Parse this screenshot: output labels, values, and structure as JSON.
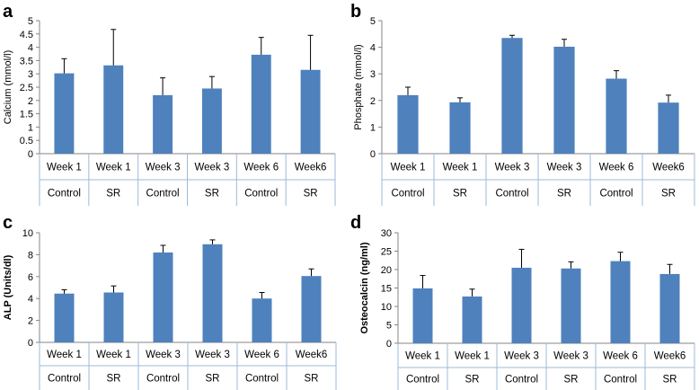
{
  "bar_color": "#4f81bd",
  "axis_color": "#868686",
  "group_line_color": "#9bbbd9",
  "chart_data": [
    {
      "type": "bar",
      "panel": "a",
      "ylabel": "Calcium (mmol/l)",
      "ylim": [
        0,
        5
      ],
      "ystep": 0.5,
      "yticks": [
        "0",
        "0.5",
        "1",
        "1.5",
        "2",
        "2.5",
        "3",
        "3.5",
        "4",
        "4.5",
        "5"
      ],
      "categories": [
        "Week 1",
        "Week 1",
        "Week 3",
        "Week 3",
        "Week 6",
        "Week6"
      ],
      "groups": [
        "Control",
        "SR",
        "Control",
        "SR",
        "Control",
        "SR"
      ],
      "values": [
        3.02,
        3.32,
        2.2,
        2.45,
        3.72,
        3.15
      ],
      "errors": [
        0.55,
        1.35,
        0.65,
        0.45,
        0.65,
        1.3
      ]
    },
    {
      "type": "bar",
      "panel": "b",
      "ylabel": "Phosphate (mmol/l)",
      "ylim": [
        0,
        5
      ],
      "ystep": 1,
      "yticks": [
        "0",
        "1",
        "2",
        "3",
        "4",
        "5"
      ],
      "categories": [
        "Week 1",
        "Week 1",
        "Week 3",
        "Week 3",
        "Week 6",
        "Week6"
      ],
      "groups": [
        "Control",
        "SR",
        "Control",
        "SR",
        "Control",
        "SR"
      ],
      "values": [
        2.2,
        1.93,
        4.35,
        4.02,
        2.82,
        1.92
      ],
      "errors": [
        0.3,
        0.17,
        0.1,
        0.28,
        0.3,
        0.28
      ]
    },
    {
      "type": "bar",
      "panel": "c",
      "ylabel": "ALP (Units/dl)",
      "ylabel_bold": true,
      "ylim": [
        0,
        10
      ],
      "ystep": 2,
      "yticks": [
        "0",
        "2",
        "4",
        "6",
        "8",
        "10"
      ],
      "categories": [
        "Week 1",
        "Week 1",
        "Week 3",
        "Week 3",
        "Week 6",
        "Week6"
      ],
      "groups": [
        "Control",
        "SR",
        "Control",
        "SR",
        "Control",
        "SR"
      ],
      "values": [
        4.45,
        4.55,
        8.2,
        8.95,
        4.0,
        6.05
      ],
      "errors": [
        0.35,
        0.6,
        0.65,
        0.4,
        0.55,
        0.65
      ]
    },
    {
      "type": "bar",
      "panel": "d",
      "ylabel": "Osteocalcin (ng/ml)",
      "ylabel_bold": true,
      "ylim": [
        0,
        30
      ],
      "ystep": 5,
      "yticks": [
        "0",
        "5",
        "10",
        "15",
        "20",
        "25",
        "30"
      ],
      "categories": [
        "Week 1",
        "Week 1",
        "Week 3",
        "Week 3",
        "Week 6",
        "Week6"
      ],
      "groups": [
        "Control",
        "SR",
        "Control",
        "SR",
        "Control",
        "SR"
      ],
      "values": [
        14.9,
        12.7,
        20.5,
        20.3,
        22.3,
        18.8
      ],
      "errors": [
        3.5,
        2.0,
        5.0,
        1.8,
        2.4,
        2.6
      ]
    }
  ]
}
